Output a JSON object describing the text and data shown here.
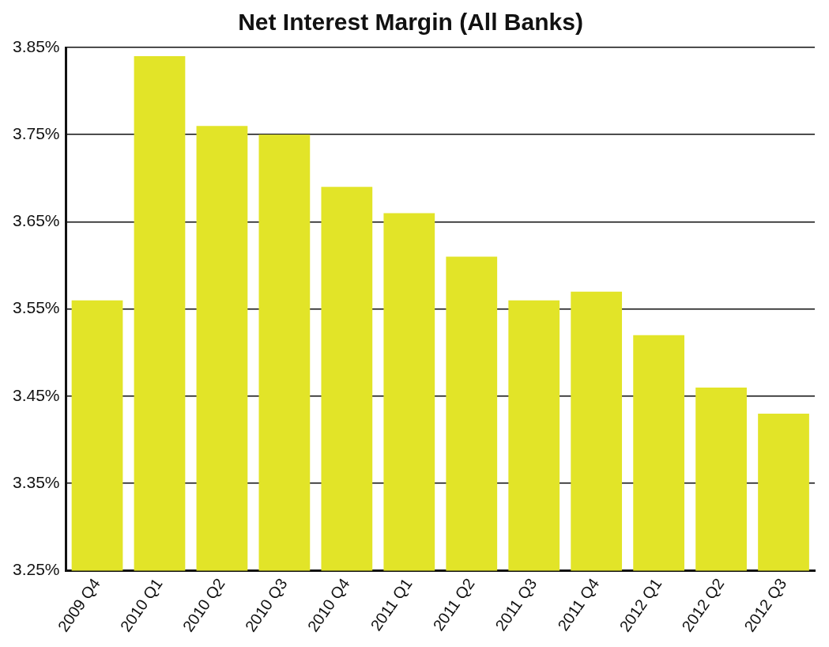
{
  "chart_data": {
    "type": "bar",
    "title": "Net Interest Margin (All Banks)",
    "categories": [
      "2009 Q4",
      "2010 Q1",
      "2010 Q2",
      "2010 Q3",
      "2010 Q4",
      "2011 Q1",
      "2011 Q2",
      "2011 Q3",
      "2011 Q4",
      "2012 Q1",
      "2012 Q2",
      "2012 Q3"
    ],
    "values": [
      3.56,
      3.84,
      3.76,
      3.75,
      3.69,
      3.66,
      3.61,
      3.56,
      3.57,
      3.52,
      3.46,
      3.43
    ],
    "color": "#e2e428",
    "ylim": [
      3.25,
      3.85
    ],
    "yticks": [
      {
        "value": 3.25,
        "label": "3.25%"
      },
      {
        "value": 3.35,
        "label": "3.35%"
      },
      {
        "value": 3.45,
        "label": "3.45%"
      },
      {
        "value": 3.55,
        "label": "3.55%"
      },
      {
        "value": 3.65,
        "label": "3.65%"
      },
      {
        "value": 3.75,
        "label": "3.75%"
      },
      {
        "value": 3.85,
        "label": "3.85%"
      }
    ],
    "grid": "y",
    "legend": false
  }
}
